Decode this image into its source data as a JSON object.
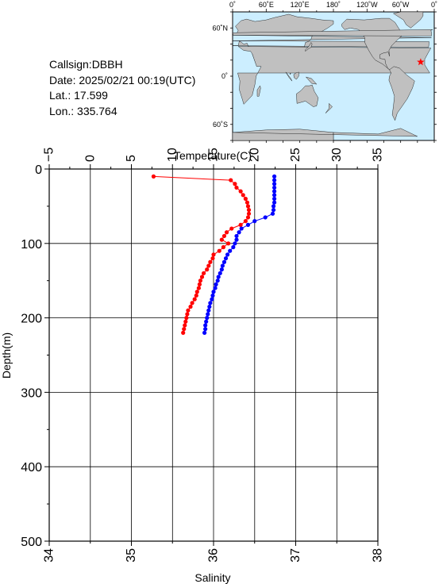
{
  "info": {
    "callsign": "Callsign:DBBH",
    "date": "Date:  2025/02/21 00:19(UTC)",
    "lat": "Lat.:  17.599",
    "lon": "Lon.:  335.764"
  },
  "map": {
    "top_labels": [
      "0˚",
      "60˚E",
      "120˚E",
      "180˚",
      "120˚W",
      "60˚W",
      "0˚"
    ],
    "left_labels": [
      "60˚N",
      "0˚",
      "60˚S"
    ],
    "ocean_color": "#cceeff",
    "land_color": "#c0c0c0",
    "marker": {
      "lat": 17.599,
      "lon": 335.764,
      "color": "#ff0000",
      "shape": "star"
    }
  },
  "chart_data": {
    "type": "line",
    "top_axis": {
      "label": "Temperature(C)",
      "range": [
        -5,
        35
      ],
      "ticks": [
        "-5",
        "0",
        "5",
        "10",
        "15",
        "20",
        "25",
        "30",
        "35"
      ]
    },
    "bottom_axis": {
      "label": "Salinity",
      "range": [
        34,
        38
      ],
      "ticks": [
        "34",
        "35",
        "36",
        "37",
        "38"
      ]
    },
    "y_axis": {
      "label": "Depth(m)",
      "range": [
        0,
        500
      ],
      "inverted": true,
      "ticks": [
        "0",
        "100",
        "200",
        "300",
        "400",
        "500"
      ]
    },
    "grid": true,
    "series": [
      {
        "key": "temperature",
        "axis": "top",
        "color": "#ff0000",
        "points": [
          [
            7.7,
            10
          ],
          [
            17.1,
            15
          ],
          [
            17.6,
            20
          ],
          [
            17.8,
            25
          ],
          [
            18.3,
            30
          ],
          [
            18.6,
            35
          ],
          [
            18.9,
            40
          ],
          [
            19.1,
            45
          ],
          [
            19.2,
            50
          ],
          [
            19.3,
            55
          ],
          [
            19.3,
            60
          ],
          [
            19.2,
            65
          ],
          [
            18.9,
            70
          ],
          [
            18.3,
            75
          ],
          [
            17.2,
            80
          ],
          [
            16.6,
            85
          ],
          [
            16.3,
            90
          ],
          [
            16.0,
            95
          ],
          [
            16.8,
            100
          ],
          [
            16.2,
            105
          ],
          [
            15.7,
            110
          ],
          [
            15.0,
            115
          ],
          [
            14.9,
            120
          ],
          [
            14.6,
            125
          ],
          [
            14.4,
            130
          ],
          [
            14.2,
            135
          ],
          [
            13.8,
            140
          ],
          [
            13.6,
            145
          ],
          [
            13.4,
            150
          ],
          [
            13.3,
            155
          ],
          [
            13.2,
            160
          ],
          [
            13.0,
            165
          ],
          [
            12.9,
            170
          ],
          [
            12.7,
            175
          ],
          [
            12.4,
            180
          ],
          [
            12.2,
            185
          ],
          [
            11.9,
            190
          ],
          [
            11.8,
            195
          ],
          [
            11.7,
            200
          ],
          [
            11.6,
            205
          ],
          [
            11.5,
            210
          ],
          [
            11.4,
            215
          ],
          [
            11.3,
            220
          ]
        ]
      },
      {
        "key": "salinity",
        "axis": "bottom",
        "color": "#0000ff",
        "points": [
          [
            36.74,
            10
          ],
          [
            36.74,
            15
          ],
          [
            36.74,
            20
          ],
          [
            36.74,
            25
          ],
          [
            36.74,
            30
          ],
          [
            36.74,
            35
          ],
          [
            36.74,
            40
          ],
          [
            36.74,
            45
          ],
          [
            36.73,
            50
          ],
          [
            36.73,
            55
          ],
          [
            36.72,
            60
          ],
          [
            36.63,
            65
          ],
          [
            36.5,
            70
          ],
          [
            36.42,
            75
          ],
          [
            36.34,
            80
          ],
          [
            36.31,
            85
          ],
          [
            36.28,
            90
          ],
          [
            36.28,
            95
          ],
          [
            36.26,
            100
          ],
          [
            36.24,
            105
          ],
          [
            36.2,
            110
          ],
          [
            36.17,
            115
          ],
          [
            36.15,
            120
          ],
          [
            36.13,
            125
          ],
          [
            36.11,
            130
          ],
          [
            36.1,
            135
          ],
          [
            36.08,
            140
          ],
          [
            36.06,
            145
          ],
          [
            36.05,
            150
          ],
          [
            36.03,
            155
          ],
          [
            36.02,
            160
          ],
          [
            36.0,
            165
          ],
          [
            35.99,
            170
          ],
          [
            35.98,
            175
          ],
          [
            35.96,
            180
          ],
          [
            35.95,
            185
          ],
          [
            35.94,
            190
          ],
          [
            35.93,
            195
          ],
          [
            35.92,
            200
          ],
          [
            35.91,
            205
          ],
          [
            35.9,
            210
          ],
          [
            35.9,
            215
          ],
          [
            35.89,
            220
          ]
        ]
      }
    ]
  }
}
